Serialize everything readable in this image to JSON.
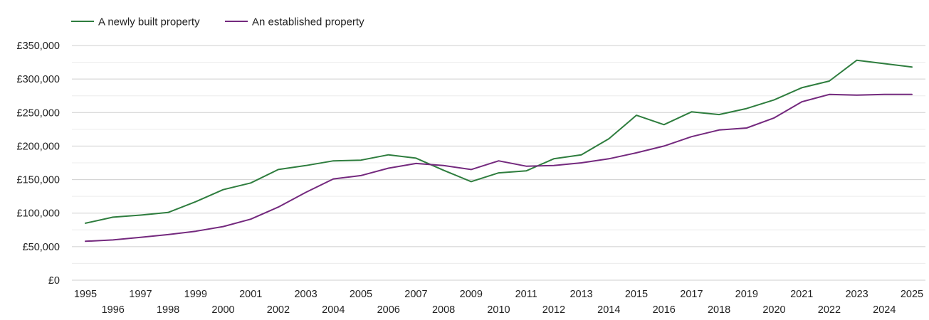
{
  "chart_data": {
    "type": "line",
    "title": "",
    "xlabel": "",
    "ylabel": "",
    "ylim": [
      0,
      350000
    ],
    "yticks": [
      0,
      50000,
      100000,
      150000,
      200000,
      250000,
      300000,
      350000
    ],
    "ytick_labels": [
      "£0",
      "£50,000",
      "£100,000",
      "£150,000",
      "£200,000",
      "£250,000",
      "£300,000",
      "£350,000"
    ],
    "x": [
      1995,
      1996,
      1997,
      1998,
      1999,
      2000,
      2001,
      2002,
      2003,
      2004,
      2005,
      2006,
      2007,
      2008,
      2009,
      2010,
      2011,
      2012,
      2013,
      2014,
      2015,
      2016,
      2017,
      2018,
      2019,
      2020,
      2021,
      2022,
      2023,
      2024,
      2025
    ],
    "xtick_labels": [
      "1995",
      "1996",
      "1997",
      "1998",
      "1999",
      "2000",
      "2001",
      "2002",
      "2003",
      "2004",
      "2005",
      "2006",
      "2007",
      "2008",
      "2009",
      "2010",
      "2011",
      "2012",
      "2013",
      "2014",
      "2015",
      "2016",
      "2017",
      "2018",
      "2019",
      "2020",
      "2021",
      "2022",
      "2023",
      "2024",
      "2025"
    ],
    "legend_position": "top-left",
    "grid": true,
    "series": [
      {
        "name": "A newly built property",
        "color": "#2e7d3e",
        "values": [
          85000,
          94000,
          97000,
          101000,
          117000,
          135000,
          145000,
          165000,
          171000,
          178000,
          179000,
          187000,
          182000,
          164000,
          147000,
          160000,
          163000,
          181000,
          187000,
          211000,
          246000,
          232000,
          251000,
          247000,
          256000,
          269000,
          287000,
          297000,
          328000,
          323000,
          318000
        ]
      },
      {
        "name": "An established property",
        "color": "#74297e",
        "values": [
          58000,
          60000,
          64000,
          68000,
          73000,
          80000,
          91000,
          109000,
          131000,
          151000,
          156000,
          167000,
          174000,
          171000,
          165000,
          178000,
          170000,
          171000,
          175000,
          181000,
          190000,
          200000,
          214000,
          224000,
          227000,
          242000,
          266000,
          277000,
          276000,
          277000,
          277000
        ]
      }
    ]
  }
}
